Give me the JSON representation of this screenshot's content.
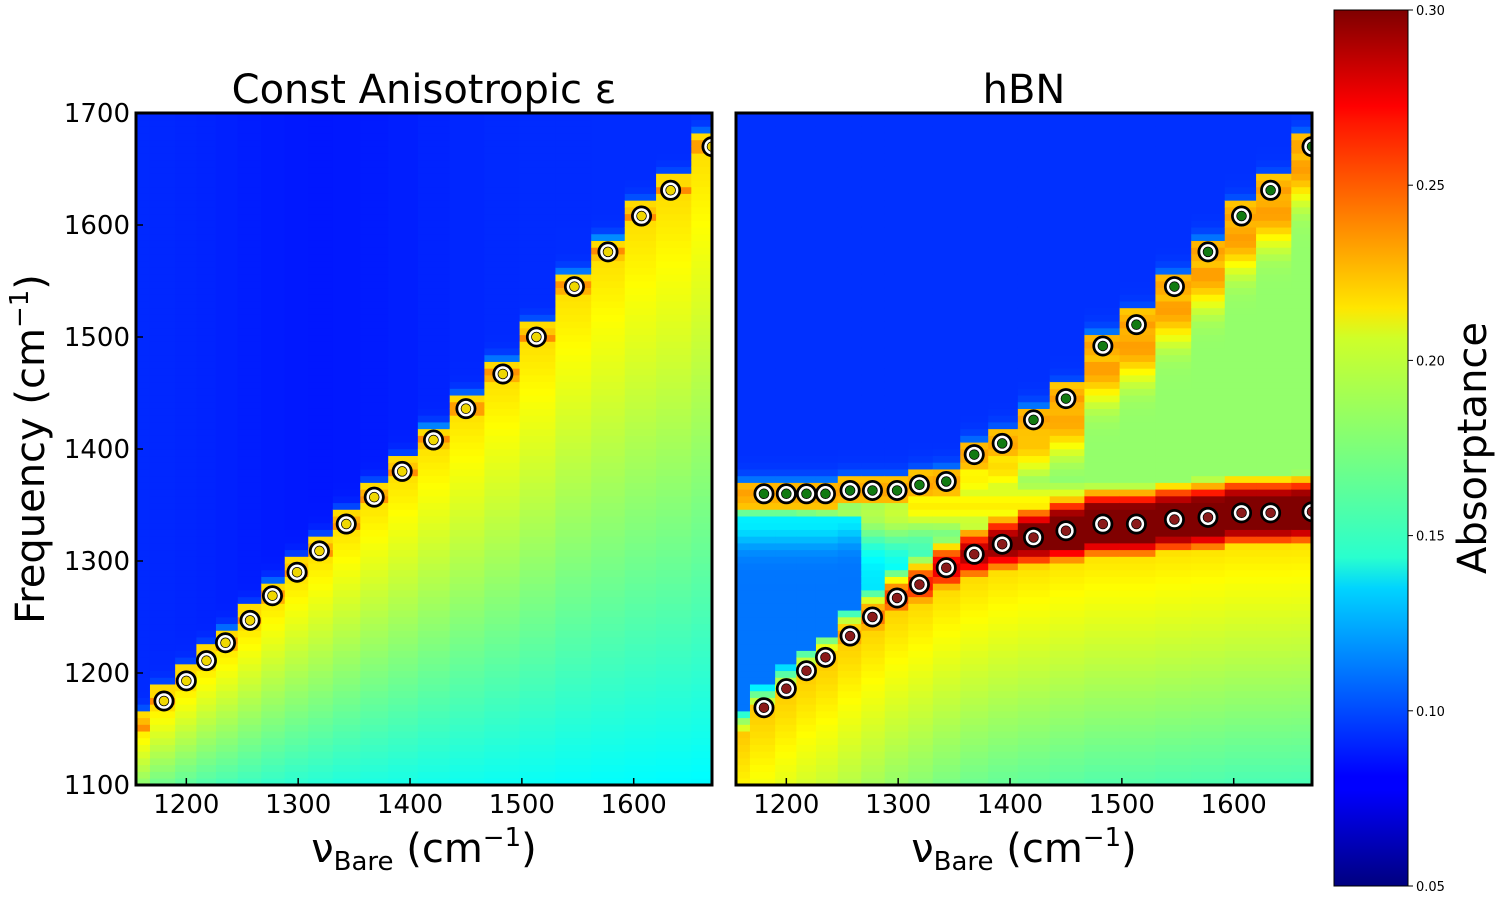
{
  "chart_data": [
    {
      "type": "heatmap",
      "title": "Const Anisotropic ε",
      "xlabel": {
        "main": "ν",
        "sub": "Bare",
        "unit_open": " (cm",
        "sup": "−1",
        "unit_close": ")"
      },
      "ylabel": {
        "main": "Frequency (cm",
        "sup": "−1",
        "close": ")"
      },
      "xlim": [
        1155,
        1670
      ],
      "ylim": [
        1100,
        1700
      ],
      "xticks": [
        "1200",
        "1300",
        "1400",
        "1500",
        "1600"
      ],
      "yticks": [
        "1100",
        "1200",
        "1300",
        "1400",
        "1500",
        "1600",
        "1700"
      ],
      "columns_x": [
        1155,
        1180,
        1200,
        1218,
        1235,
        1257,
        1277,
        1299,
        1319,
        1343,
        1368,
        1393,
        1421,
        1450,
        1483,
        1513,
        1547,
        1577,
        1607,
        1633,
        1670
      ],
      "markers": {
        "color": "#f0d800",
        "x": [
          1180,
          1200,
          1218,
          1235,
          1257,
          1277,
          1299,
          1319,
          1343,
          1368,
          1393,
          1421,
          1450,
          1483,
          1513,
          1547,
          1577,
          1607,
          1633,
          1670
        ],
        "y": [
          1175,
          1193,
          1211,
          1227,
          1247,
          1269,
          1290,
          1309,
          1333,
          1357,
          1380,
          1408,
          1436,
          1467,
          1500,
          1545,
          1576,
          1608,
          1631,
          1670
        ]
      }
    },
    {
      "type": "heatmap",
      "title": "hBN",
      "xlabel": {
        "main": "ν",
        "sub": "Bare",
        "unit_open": " (cm",
        "sup": "−1",
        "unit_close": ")"
      },
      "xlim": [
        1155,
        1670
      ],
      "ylim": [
        1100,
        1700
      ],
      "xticks": [
        "1200",
        "1300",
        "1400",
        "1500",
        "1600"
      ],
      "columns_x": [
        1155,
        1180,
        1200,
        1218,
        1235,
        1257,
        1277,
        1299,
        1319,
        1343,
        1368,
        1393,
        1421,
        1450,
        1483,
        1513,
        1547,
        1577,
        1607,
        1633,
        1670
      ],
      "upper_markers": {
        "color": "#117a11",
        "x": [
          1180,
          1200,
          1218,
          1235,
          1257,
          1277,
          1299,
          1319,
          1343,
          1368,
          1393,
          1421,
          1450,
          1483,
          1513,
          1547,
          1577,
          1607,
          1633,
          1670
        ],
        "y": [
          1360,
          1360,
          1360,
          1360,
          1363,
          1363,
          1363,
          1368,
          1371,
          1395,
          1405,
          1426,
          1445,
          1492,
          1511,
          1545,
          1576,
          1608,
          1631,
          1670
        ]
      },
      "lower_markers": {
        "color": "#8b1a1a",
        "x": [
          1180,
          1200,
          1218,
          1235,
          1257,
          1277,
          1299,
          1319,
          1343,
          1368,
          1393,
          1421,
          1450,
          1483,
          1513,
          1547,
          1577,
          1607,
          1633,
          1670
        ],
        "y": [
          1169,
          1186,
          1202,
          1214,
          1233,
          1250,
          1267,
          1279,
          1294,
          1306,
          1315,
          1321,
          1327,
          1333,
          1333,
          1337,
          1339,
          1343,
          1343,
          1344
        ]
      }
    }
  ],
  "colorbar": {
    "label": "Absorptance",
    "vmin": 0.05,
    "vmax": 0.3,
    "ticks": [
      "0.05",
      "0.10",
      "0.15",
      "0.20",
      "0.25",
      "0.30"
    ]
  }
}
